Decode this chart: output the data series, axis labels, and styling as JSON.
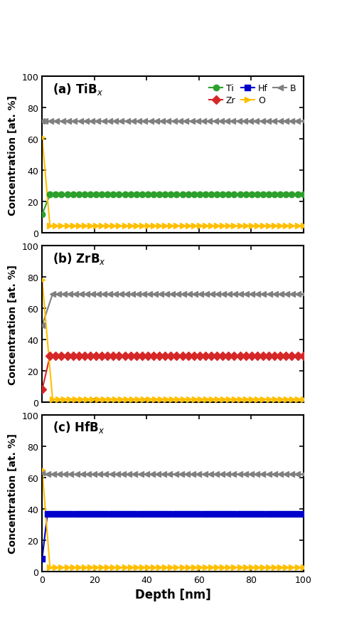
{
  "panels": [
    {
      "label": "(a) TiB$_x$",
      "ylim": [
        0,
        100
      ],
      "yticks": [
        0,
        20,
        40,
        60,
        80,
        100
      ],
      "series": {
        "Ti": {
          "color": "#2ca02c",
          "marker": "o",
          "steady": 24.5,
          "surface_val": 12,
          "transition_depth": 3
        },
        "Zr": {
          "color": "#d62728",
          "marker": "D",
          "steady": null,
          "surface_val": null,
          "transition_depth": null
        },
        "Hf": {
          "color": "#0000cc",
          "marker": "s",
          "steady": null,
          "surface_val": null,
          "transition_depth": null
        },
        "O": {
          "color": "#ffbf00",
          "marker": ">",
          "steady": 4.5,
          "surface_val": 61,
          "transition_depth": 3
        },
        "B": {
          "color": "#808080",
          "marker": "<",
          "steady": 71.5,
          "surface_val": 71.5,
          "transition_depth": 1
        }
      }
    },
    {
      "label": "(b) ZrB$_x$",
      "ylim": [
        0,
        100
      ],
      "yticks": [
        0,
        20,
        40,
        60,
        80,
        100
      ],
      "series": {
        "Ti": {
          "color": "#2ca02c",
          "marker": "o",
          "steady": null,
          "surface_val": null,
          "transition_depth": null
        },
        "Zr": {
          "color": "#d62728",
          "marker": "D",
          "steady": 29.5,
          "surface_val": 8,
          "transition_depth": 3
        },
        "Hf": {
          "color": "#0000cc",
          "marker": "s",
          "steady": null,
          "surface_val": null,
          "transition_depth": null
        },
        "O": {
          "color": "#ffbf00",
          "marker": ">",
          "steady": 2.0,
          "surface_val": 78,
          "transition_depth": 4
        },
        "B": {
          "color": "#808080",
          "marker": "<",
          "steady": 69.0,
          "surface_val": 49,
          "transition_depth": 4
        }
      }
    },
    {
      "label": "(c) HfB$_x$",
      "ylim": [
        0,
        100
      ],
      "yticks": [
        0,
        20,
        40,
        60,
        80,
        100
      ],
      "series": {
        "Ti": {
          "color": "#2ca02c",
          "marker": "o",
          "steady": null,
          "surface_val": null,
          "transition_depth": null
        },
        "Zr": {
          "color": "#d62728",
          "marker": "D",
          "steady": null,
          "surface_val": null,
          "transition_depth": null
        },
        "Hf": {
          "color": "#0000cc",
          "marker": "s",
          "steady": 36.5,
          "surface_val": 8,
          "transition_depth": 2
        },
        "O": {
          "color": "#ffbf00",
          "marker": ">",
          "steady": 2.5,
          "surface_val": 65,
          "transition_depth": 3
        },
        "B": {
          "color": "#808080",
          "marker": "<",
          "steady": 62.0,
          "surface_val": 63,
          "transition_depth": 2
        }
      }
    }
  ],
  "xlim": [
    0,
    100
  ],
  "xticks": [
    0,
    20,
    40,
    60,
    80,
    100
  ],
  "xlabel": "Depth [nm]",
  "ylabel": "Concentration [at. %]",
  "legend_elements": [
    {
      "label": "Ti",
      "color": "#2ca02c",
      "marker": "o"
    },
    {
      "label": "Zr",
      "color": "#d62728",
      "marker": "D"
    },
    {
      "label": "Hf",
      "color": "#0000cc",
      "marker": "s"
    },
    {
      "label": "O",
      "color": "#ffbf00",
      "marker": ">"
    },
    {
      "label": "B",
      "color": "#808080",
      "marker": "<"
    }
  ],
  "marker_size": 6,
  "linewidth": 1.5
}
